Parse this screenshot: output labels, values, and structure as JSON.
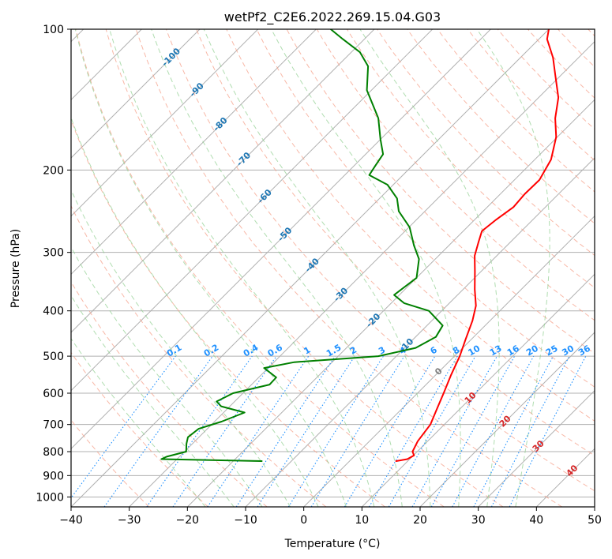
{
  "chart_data": {
    "type": "line",
    "title": "wetPf2_C2E6.2022.269.15.04.G03",
    "xlabel": "Temperature (°C)",
    "ylabel": "Pressure (hPa)",
    "xlim": [
      -40,
      50
    ],
    "ylim": [
      1050,
      100
    ],
    "y_scale": "log",
    "x_ticks": [
      -40,
      -30,
      -20,
      -10,
      0,
      10,
      20,
      30,
      40,
      50
    ],
    "y_ticks": [
      1000,
      900,
      800,
      700,
      600,
      500,
      400,
      300,
      200,
      100
    ],
    "skew": 45,
    "series": [
      {
        "color": "#ff0000",
        "values": [
          [
            838,
            8.0
          ],
          [
            830,
            9.6
          ],
          [
            815,
            10.1
          ],
          [
            800,
            9.2
          ],
          [
            760,
            8.3
          ],
          [
            700,
            7.6
          ],
          [
            650,
            6.1
          ],
          [
            600,
            4.5
          ],
          [
            550,
            2.7
          ],
          [
            500,
            0.9
          ],
          [
            460,
            -1.0
          ],
          [
            420,
            -3.0
          ],
          [
            390,
            -5.0
          ],
          [
            360,
            -8.0
          ],
          [
            330,
            -11.0
          ],
          [
            305,
            -13.8
          ],
          [
            285,
            -15.5
          ],
          [
            270,
            -16.8
          ],
          [
            255,
            -16.3
          ],
          [
            240,
            -15.5
          ],
          [
            225,
            -15.8
          ],
          [
            210,
            -15.7
          ],
          [
            190,
            -17.2
          ],
          [
            170,
            -20.2
          ],
          [
            155,
            -23.6
          ],
          [
            140,
            -26.6
          ],
          [
            125,
            -31.1
          ],
          [
            115,
            -34.4
          ],
          [
            105,
            -38.6
          ],
          [
            100,
            -40.0
          ]
        ]
      },
      {
        "color": "#008000",
        "values": [
          [
            838,
            -15.1
          ],
          [
            830,
            -32.7
          ],
          [
            820,
            -32.2
          ],
          [
            800,
            -29.7
          ],
          [
            770,
            -31.0
          ],
          [
            745,
            -31.9
          ],
          [
            715,
            -31.5
          ],
          [
            690,
            -28.8
          ],
          [
            660,
            -26.4
          ],
          [
            640,
            -31.5
          ],
          [
            625,
            -33.1
          ],
          [
            600,
            -31.7
          ],
          [
            575,
            -26.9
          ],
          [
            555,
            -27.0
          ],
          [
            530,
            -30.7
          ],
          [
            515,
            -26.5
          ],
          [
            500,
            -13.1
          ],
          [
            480,
            -8.1
          ],
          [
            455,
            -6.5
          ],
          [
            430,
            -7.3
          ],
          [
            400,
            -12.2
          ],
          [
            385,
            -17.8
          ],
          [
            370,
            -20.9
          ],
          [
            340,
            -20.0
          ],
          [
            310,
            -22.8
          ],
          [
            290,
            -26.0
          ],
          [
            265,
            -29.9
          ],
          [
            245,
            -34.5
          ],
          [
            230,
            -37.0
          ],
          [
            215,
            -41.0
          ],
          [
            205,
            -45.8
          ],
          [
            195,
            -46.4
          ],
          [
            185,
            -47.0
          ],
          [
            172,
            -50.0
          ],
          [
            155,
            -54.0
          ],
          [
            135,
            -60.8
          ],
          [
            120,
            -64.7
          ],
          [
            112,
            -68.5
          ],
          [
            105,
            -73.7
          ],
          [
            100,
            -77.5
          ]
        ]
      }
    ],
    "dry_adiabats_c": [
      -30,
      -20,
      -10,
      0,
      10,
      20,
      30,
      40,
      50,
      60,
      70,
      80,
      90,
      100,
      110,
      120,
      130,
      140,
      150,
      160,
      170,
      180,
      190,
      200
    ],
    "moist_adiabats_c": [
      -20,
      -15,
      -10,
      -5,
      0,
      5,
      10,
      15,
      20,
      25,
      30,
      35
    ],
    "mixing_ratios": [
      0.1,
      0.2,
      0.4,
      0.6,
      1,
      1.5,
      2,
      3,
      4,
      6,
      8,
      10,
      13,
      16,
      20,
      25,
      30,
      36
    ],
    "mixing_ratio_labels": [
      "0.1",
      "0.2",
      "0.4",
      "0.6",
      "1",
      "1.5",
      "2",
      "3",
      "4",
      "6",
      "8",
      "10",
      "13",
      "16",
      "20",
      "25",
      "30",
      "36"
    ],
    "mixing_ratio_color": "#1e90ff",
    "isotherm_labels": [
      {
        "text": "-100",
        "t": -100,
        "p": 115
      },
      {
        "text": "-90",
        "t": -90,
        "p": 135
      },
      {
        "text": "-80",
        "t": -80,
        "p": 160
      },
      {
        "text": "-70",
        "t": -70,
        "p": 190
      },
      {
        "text": "-60",
        "t": -60,
        "p": 228
      },
      {
        "text": "-50",
        "t": -50,
        "p": 275
      },
      {
        "text": "-40",
        "t": -40,
        "p": 320
      },
      {
        "text": "-30",
        "t": -30,
        "p": 370
      },
      {
        "text": "-20",
        "t": -20,
        "p": 420
      },
      {
        "text": "-10",
        "t": -10,
        "p": 475
      },
      {
        "text": "0",
        "t": 0,
        "p": 540
      },
      {
        "text": "10",
        "t": 10,
        "p": 615
      },
      {
        "text": "20",
        "t": 20,
        "p": 690
      },
      {
        "text": "30",
        "t": 30,
        "p": 780
      },
      {
        "text": "40",
        "t": 40,
        "p": 880
      }
    ],
    "isotherm_label_colors": {
      "negative": "#1f77b4",
      "zero": "#808080",
      "positive": "#d62728"
    },
    "grid": true
  }
}
